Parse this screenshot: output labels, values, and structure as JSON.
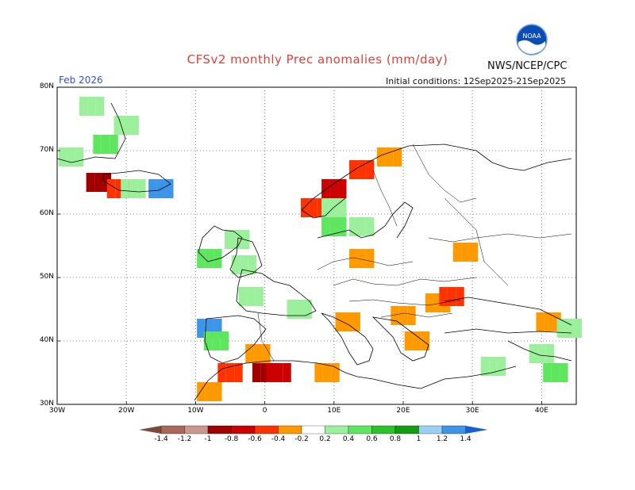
{
  "header": {
    "title": "CFSv2 monthly Prec anomalies (mm/day)",
    "brand": "NWS/NCEP/CPC",
    "valid_label": "Feb 2026",
    "init_label": "Initial conditions: 12Sep2025-21Sep2025",
    "logo_text": "NOAA"
  },
  "axes": {
    "lat_labels": [
      "80N",
      "70N",
      "60N",
      "50N",
      "40N",
      "30N"
    ],
    "lon_labels": [
      "30W",
      "20W",
      "10W",
      "0",
      "10E",
      "20E",
      "30E",
      "40E"
    ]
  },
  "colorbar": {
    "labels": [
      "-1.4",
      "-1.2",
      "-1",
      "-0.8",
      "-0.6",
      "-0.4",
      "-0.2",
      "0.2",
      "0.4",
      "0.6",
      "0.8",
      "1",
      "1.2",
      "1.4"
    ],
    "colors": [
      "#7a4a3a",
      "#a8685a",
      "#c89890",
      "#a00000",
      "#cc0000",
      "#ff3300",
      "#ff9900",
      "#ffffff",
      "#9cf09c",
      "#5fe65f",
      "#2bc22b",
      "#109e10",
      "#9ad0f5",
      "#3d95e8",
      "#1a5fd0"
    ]
  },
  "chart_data": {
    "type": "heatmap",
    "title": "CFSv2 monthly Prec anomalies (mm/day)",
    "valid": "Feb 2026",
    "initial_conditions": "12Sep2025-21Sep2025",
    "lon_range": [
      -30,
      45
    ],
    "lat_range": [
      30,
      80
    ],
    "units": "mm/day",
    "cells": [
      {
        "lon": -25,
        "lat": 77,
        "value": 0.3
      },
      {
        "lon": -20,
        "lat": 74,
        "value": 0.3
      },
      {
        "lon": -23,
        "lat": 71,
        "value": 0.4
      },
      {
        "lon": -28,
        "lat": 69,
        "value": 0.3
      },
      {
        "lon": -24,
        "lat": 65,
        "value": -1.0
      },
      {
        "lon": -21,
        "lat": 64,
        "value": -0.5
      },
      {
        "lon": -19,
        "lat": 64,
        "value": 0.3
      },
      {
        "lon": -15,
        "lat": 64,
        "value": 1.2
      },
      {
        "lon": 7,
        "lat": 61,
        "value": -0.5
      },
      {
        "lon": 10,
        "lat": 64,
        "value": -0.7
      },
      {
        "lon": 14,
        "lat": 67,
        "value": -0.6
      },
      {
        "lon": 18,
        "lat": 69,
        "value": -0.4
      },
      {
        "lon": 10,
        "lat": 61,
        "value": 0.3
      },
      {
        "lon": 10,
        "lat": 58,
        "value": 0.4
      },
      {
        "lon": 14,
        "lat": 58,
        "value": 0.3
      },
      {
        "lon": -4,
        "lat": 56,
        "value": 0.3
      },
      {
        "lon": -8,
        "lat": 53,
        "value": 0.4
      },
      {
        "lon": -3,
        "lat": 52,
        "value": 0.3
      },
      {
        "lon": -2,
        "lat": 47,
        "value": 0.3
      },
      {
        "lon": 5,
        "lat": 45,
        "value": 0.3
      },
      {
        "lon": -8,
        "lat": 42,
        "value": 1.2
      },
      {
        "lon": -7,
        "lat": 40,
        "value": 0.5
      },
      {
        "lon": -1,
        "lat": 38,
        "value": -0.4
      },
      {
        "lon": -5,
        "lat": 35,
        "value": -0.6
      },
      {
        "lon": 0,
        "lat": 35,
        "value": -0.9
      },
      {
        "lon": 2,
        "lat": 35,
        "value": -0.8
      },
      {
        "lon": -8,
        "lat": 32,
        "value": -0.3
      },
      {
        "lon": 9,
        "lat": 35,
        "value": -0.3
      },
      {
        "lon": 12,
        "lat": 43,
        "value": -0.3
      },
      {
        "lon": 20,
        "lat": 44,
        "value": -0.4
      },
      {
        "lon": 25,
        "lat": 46,
        "value": -0.4
      },
      {
        "lon": 27,
        "lat": 47,
        "value": -0.6
      },
      {
        "lon": 22,
        "lat": 40,
        "value": -0.3
      },
      {
        "lon": 14,
        "lat": 53,
        "value": -0.3
      },
      {
        "lon": 29,
        "lat": 54,
        "value": -0.3
      },
      {
        "lon": 33,
        "lat": 36,
        "value": 0.3
      },
      {
        "lon": 40,
        "lat": 38,
        "value": 0.3
      },
      {
        "lon": 42,
        "lat": 35,
        "value": 0.4
      },
      {
        "lon": 41,
        "lat": 43,
        "value": -0.4
      },
      {
        "lon": 44,
        "lat": 42,
        "value": 0.3
      }
    ]
  }
}
